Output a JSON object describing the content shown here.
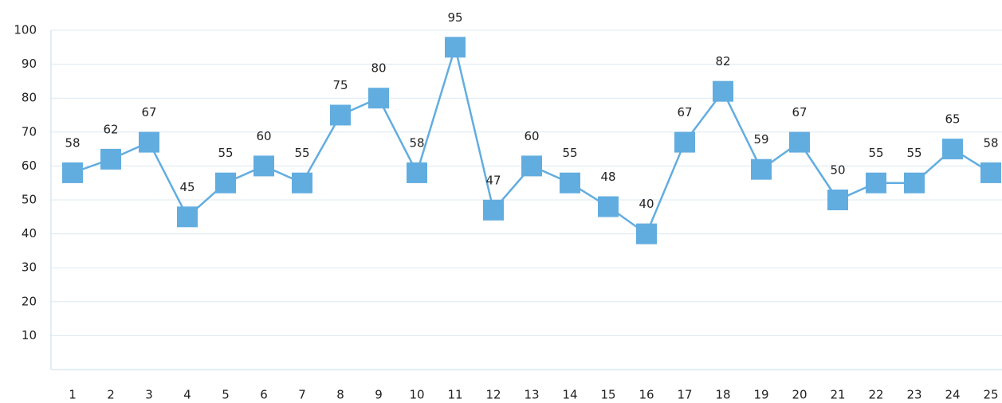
{
  "chart_data": {
    "type": "line",
    "categories": [
      "1",
      "2",
      "3",
      "4",
      "5",
      "6",
      "7",
      "8",
      "9",
      "10",
      "11",
      "12",
      "13",
      "14",
      "15",
      "16",
      "17",
      "18",
      "19",
      "20",
      "21",
      "22",
      "23",
      "24",
      "25"
    ],
    "values": [
      58,
      62,
      67,
      45,
      55,
      60,
      55,
      75,
      80,
      58,
      95,
      47,
      60,
      55,
      48,
      40,
      67,
      82,
      59,
      67,
      50,
      55,
      55,
      65,
      58
    ],
    "color": "#62ade0",
    "ylim": [
      0,
      100
    ],
    "yticks": [
      10,
      20,
      30,
      40,
      50,
      60,
      70,
      80,
      90,
      100
    ],
    "grid": true
  }
}
